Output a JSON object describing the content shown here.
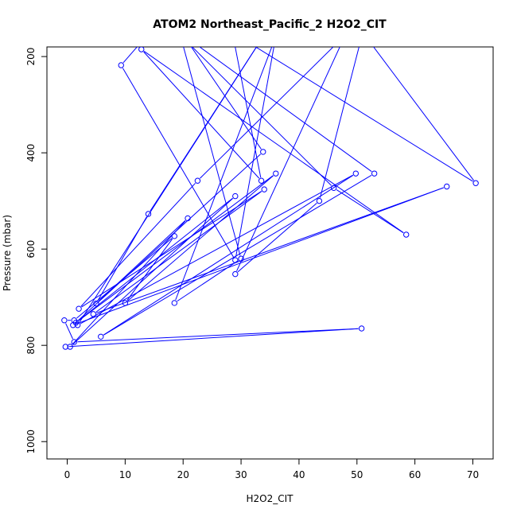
{
  "chart_data": {
    "type": "line",
    "title": "ATOM2 Northeast_Pacific_2 H2O2_CIT",
    "xlabel": "H2O2_CIT",
    "ylabel": "Pressure (mbar)",
    "xlim": [
      -3.5,
      73.5
    ],
    "ylim": [
      1036,
      180
    ],
    "y_reversed": true,
    "xticks": [
      0,
      10,
      20,
      30,
      40,
      50,
      60,
      70
    ],
    "yticks": [
      200,
      400,
      600,
      800,
      1000
    ],
    "grid": false,
    "legend": "none",
    "line_color": "#0000ff",
    "marker": "open-circle",
    "series": [
      {
        "points": [
          [
            13.5,
            160
          ],
          [
            9.3,
            218
          ],
          [
            29.0,
            623
          ],
          [
            36.0,
            158
          ],
          [
            18.5,
            712
          ],
          [
            30.0,
            620
          ],
          [
            19.5,
            155
          ],
          [
            46.0,
            473
          ],
          [
            58.5,
            570
          ],
          [
            12.8,
            185
          ],
          [
            33.5,
            458
          ],
          [
            28.5,
            150
          ],
          [
            70.5,
            463
          ],
          [
            51.0,
            150
          ],
          [
            43.5,
            500
          ],
          [
            29.0,
            652
          ],
          [
            48.0,
            155
          ],
          [
            22.5,
            458
          ],
          [
            2.0,
            724
          ],
          [
            34.0,
            476
          ],
          [
            4.5,
            735
          ],
          [
            65.5,
            470
          ],
          [
            1.0,
            758
          ],
          [
            33.8,
            398
          ],
          [
            20.0,
            155
          ],
          [
            53.0,
            443
          ],
          [
            5.8,
            782
          ],
          [
            49.8,
            443
          ],
          [
            1.8,
            758
          ],
          [
            34.0,
            155
          ],
          [
            14.0,
            527
          ],
          [
            5.0,
            713
          ],
          [
            20.8,
            536
          ],
          [
            0.5,
            803
          ],
          [
            29.0,
            490
          ],
          [
            1.5,
            753
          ],
          [
            36.0,
            443
          ],
          [
            10.0,
            712
          ],
          [
            18.5,
            573
          ],
          [
            1.2,
            748
          ],
          [
            -0.5,
            748
          ],
          [
            1.2,
            793
          ],
          [
            50.8,
            765
          ],
          [
            -0.3,
            803
          ]
        ]
      }
    ]
  }
}
